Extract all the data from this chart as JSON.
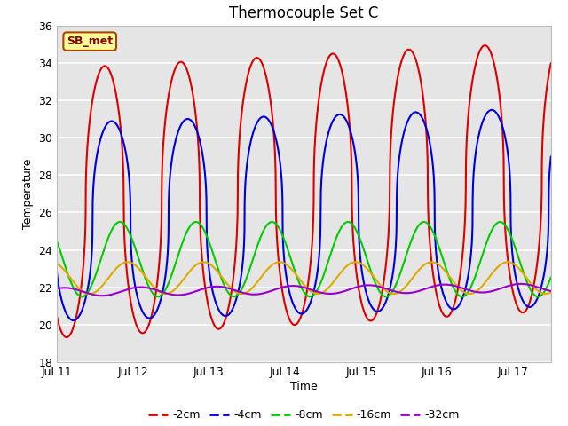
{
  "title": "Thermocouple Set C",
  "xlabel": "Time",
  "ylabel": "Temperature",
  "xlim_days": [
    0,
    6.5
  ],
  "ylim": [
    18,
    36
  ],
  "yticks": [
    18,
    20,
    22,
    24,
    26,
    28,
    30,
    32,
    34,
    36
  ],
  "xtick_labels": [
    "Jul 11",
    "Jul 12",
    "Jul 13",
    "Jul 14",
    "Jul 15",
    "Jul 16",
    "Jul 17"
  ],
  "xtick_positions": [
    0,
    1,
    2,
    3,
    4,
    5,
    6
  ],
  "lines": {
    "-2cm": {
      "color": "#dd0000",
      "lw": 1.5
    },
    "-4cm": {
      "color": "#0000dd",
      "lw": 1.5
    },
    "-8cm": {
      "color": "#00cc00",
      "lw": 1.5
    },
    "-16cm": {
      "color": "#ddaa00",
      "lw": 1.5
    },
    "-32cm": {
      "color": "#9900cc",
      "lw": 1.5
    }
  },
  "annotation_text": "SB_met",
  "bg_color": "#e5e5e5",
  "fig_color": "#ffffff",
  "grid_color": "white",
  "title_fontsize": 12,
  "axis_label_fontsize": 9,
  "tick_fontsize": 9,
  "legend_fontsize": 9
}
